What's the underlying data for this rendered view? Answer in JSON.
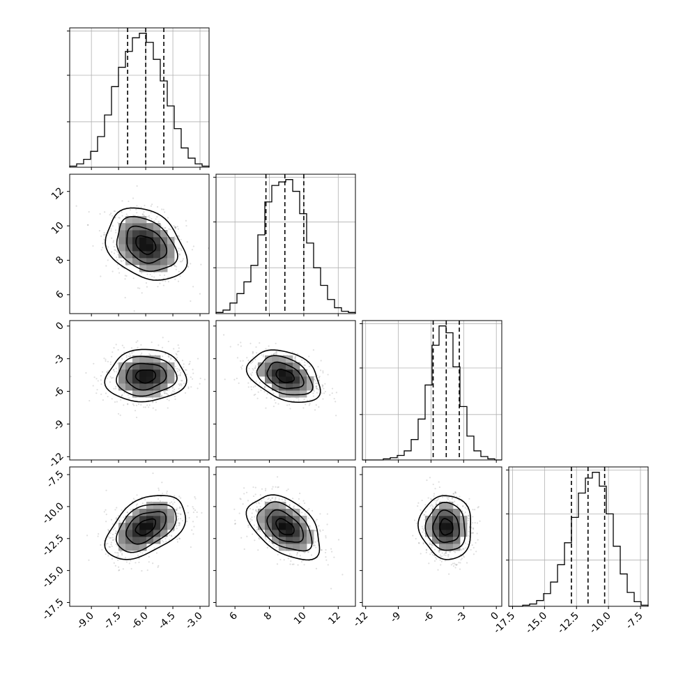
{
  "chart_data": {
    "type": "corner",
    "parameters": [
      {
        "mean": -6.0,
        "std": 1.1,
        "range": [
          -10.2,
          -2.5
        ],
        "ticks": [
          "-9.0",
          "-7.5",
          "-6.0",
          "-4.5",
          "-3.0"
        ],
        "tick_values": [
          -9.0,
          -7.5,
          -6.0,
          -4.5,
          -3.0
        ],
        "quantiles": [
          -7.0,
          -6.0,
          -5.0
        ]
      },
      {
        "mean": 8.9,
        "std": 1.05,
        "range": [
          4.9,
          13.0
        ],
        "ticks": [
          "6",
          "8",
          "10",
          "12"
        ],
        "tick_values": [
          6,
          8,
          10,
          12
        ],
        "quantiles": [
          7.8,
          8.9,
          10.0
        ]
      },
      {
        "mean": -4.6,
        "std": 1.2,
        "range": [
          -12.3,
          0.5
        ],
        "ticks": [
          "-12",
          "-9",
          "-6",
          "-3",
          "0"
        ],
        "tick_values": [
          -12,
          -9,
          -6,
          -3,
          0
        ],
        "quantiles": [
          -5.8,
          -4.6,
          -3.4
        ]
      },
      {
        "mean": -11.6,
        "std": 1.25,
        "range": [
          -17.8,
          -6.9
        ],
        "ticks": [
          "-17.5",
          "-15.0",
          "-12.5",
          "-10.0",
          "-7.5"
        ],
        "tick_values": [
          -17.5,
          -15.0,
          -12.5,
          -10.0,
          -7.5
        ],
        "quantiles": [
          -12.9,
          -11.6,
          -10.3
        ]
      }
    ],
    "histograms": [
      {
        "bin_edges": [
          -10.2,
          -9.815,
          -9.43,
          -9.045,
          -8.66,
          -8.275,
          -7.89,
          -7.505,
          -7.12,
          -6.735,
          -6.35,
          -5.965,
          -5.58,
          -5.195,
          -4.81,
          -4.425,
          -4.04,
          -3.655,
          -3.27,
          -2.885,
          -2.5
        ],
        "counts": [
          1,
          3,
          7,
          14,
          27,
          46,
          71,
          88,
          102,
          114,
          118,
          110,
          95,
          76,
          54,
          34,
          17,
          8,
          3,
          1
        ]
      },
      {
        "bin_edges": [
          4.9,
          5.305,
          5.71,
          6.115,
          6.52,
          6.925,
          7.33,
          7.735,
          8.14,
          8.545,
          8.95,
          9.355,
          9.76,
          10.165,
          10.57,
          10.975,
          11.38,
          11.785,
          12.19,
          12.595,
          13.0
        ],
        "counts": [
          1,
          3,
          9,
          17,
          27,
          41,
          67,
          95,
          109,
          112,
          114,
          104,
          85,
          60,
          39,
          24,
          12,
          5,
          2,
          1
        ]
      },
      {
        "bin_edges": [
          -12.3,
          -11.66,
          -11.02,
          -10.38,
          -9.74,
          -9.1,
          -8.46,
          -7.82,
          -7.18,
          -6.54,
          -5.9,
          -5.26,
          -4.62,
          -3.98,
          -3.34,
          -2.7,
          -2.06,
          -1.42,
          -0.78,
          -0.14,
          0.5
        ],
        "counts": [
          0,
          0,
          0,
          1,
          2,
          4,
          8,
          18,
          36,
          66,
          101,
          118,
          112,
          82,
          47,
          21,
          8,
          3,
          1,
          0
        ]
      },
      {
        "bin_edges": [
          -17.8,
          -17.255,
          -16.71,
          -16.165,
          -15.62,
          -15.075,
          -14.53,
          -13.985,
          -13.44,
          -12.895,
          -12.35,
          -11.805,
          -11.26,
          -10.715,
          -10.17,
          -9.625,
          -9.08,
          -8.535,
          -7.99,
          -7.445,
          -6.9
        ],
        "counts": [
          0,
          0,
          1,
          2,
          5,
          11,
          21,
          36,
          55,
          77,
          98,
          111,
          116,
          104,
          80,
          52,
          28,
          12,
          4,
          1
        ]
      }
    ],
    "correlations": {
      "1-0": -0.3,
      "2-0": 0.05,
      "2-1": -0.35,
      "3-0": 0.45,
      "3-1": -0.45,
      "3-2": -0.05
    },
    "contour_levels_sigma": [
      0.5,
      1.0,
      1.5,
      2.0
    ],
    "scatter": true,
    "grid": true
  }
}
